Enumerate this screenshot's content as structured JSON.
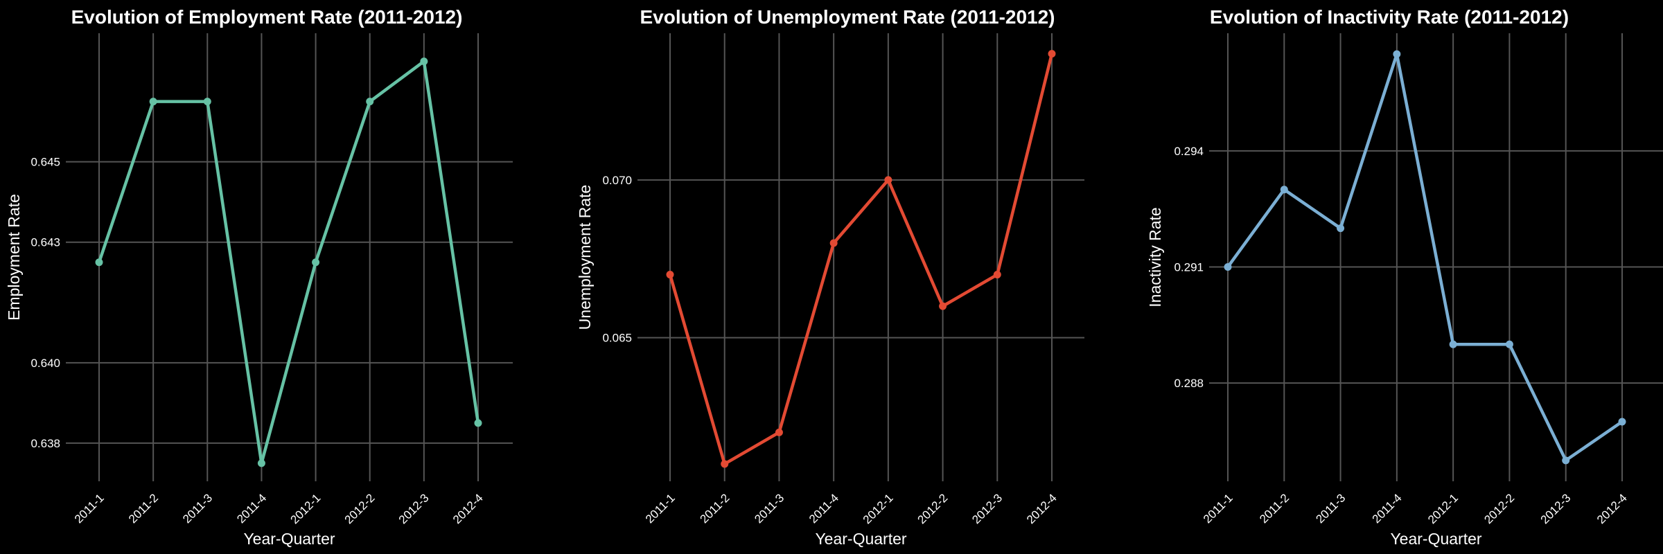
{
  "chart_data": [
    {
      "type": "line",
      "title": "Evolution of Employment Rate (2011-2012)",
      "xlabel": "Year-Quarter",
      "ylabel": "Employment Rate",
      "categories": [
        "2011-1",
        "2011-2",
        "2011-3",
        "2011-4",
        "2012-1",
        "2012-2",
        "2012-3",
        "2012-4"
      ],
      "values": [
        0.6425,
        0.6465,
        0.6465,
        0.6375,
        0.6425,
        0.6465,
        0.6475,
        0.6385
      ],
      "yticks": [
        0.638,
        0.64,
        0.643,
        0.645
      ],
      "ytick_labels": [
        "0.638",
        "0.640",
        "0.643",
        "0.645"
      ],
      "ylim": [
        0.63705,
        0.6482
      ],
      "color": "#66c2a5",
      "grid": true
    },
    {
      "type": "line",
      "title": "Evolution of Unemployment Rate (2011-2012)",
      "xlabel": "Year-Quarter",
      "ylabel": "Unemployment Rate",
      "categories": [
        "2011-1",
        "2011-2",
        "2011-3",
        "2011-4",
        "2012-1",
        "2012-2",
        "2012-3",
        "2012-4"
      ],
      "values": [
        0.067,
        0.061,
        0.062,
        0.068,
        0.07,
        0.066,
        0.067,
        0.074
      ],
      "yticks": [
        0.065,
        0.07
      ],
      "ytick_labels": [
        "0.065",
        "0.070"
      ],
      "ylim": [
        0.06045,
        0.07465
      ],
      "color": "#e34a33",
      "grid": true
    },
    {
      "type": "line",
      "title": "Evolution of Inactivity Rate (2011-2012)",
      "xlabel": "Year-Quarter",
      "ylabel": "Inactivity Rate",
      "categories": [
        "2011-1",
        "2011-2",
        "2011-3",
        "2011-4",
        "2012-1",
        "2012-2",
        "2012-3",
        "2012-4"
      ],
      "values": [
        0.291,
        0.293,
        0.292,
        0.2965,
        0.289,
        0.289,
        0.286,
        0.287
      ],
      "yticks": [
        0.288,
        0.291,
        0.294
      ],
      "ytick_labels": [
        "0.288",
        "0.291",
        "0.294"
      ],
      "ylim": [
        0.28546,
        0.29704
      ],
      "color": "#7bafd4",
      "grid": true
    }
  ]
}
